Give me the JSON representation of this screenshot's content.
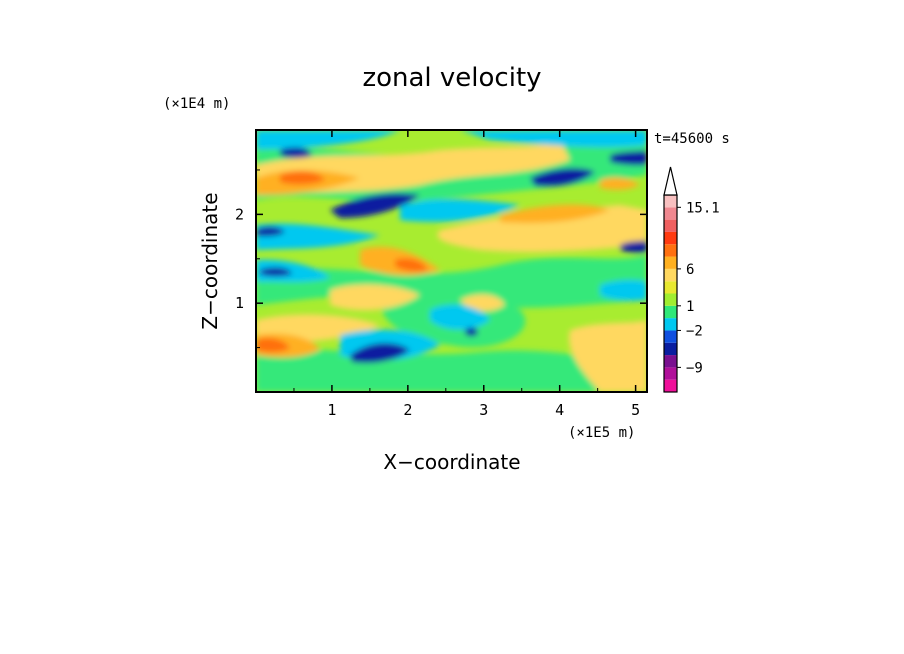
{
  "chart_data": {
    "type": "heatmap",
    "title": "zonal velocity",
    "time_label": "t=45600 s",
    "xlabel": "X−coordinate",
    "ylabel": "Z−coordinate",
    "x_unit_label": "(×1E5 m)",
    "y_unit_label": "(×1E4 m)",
    "xlim": [
      0,
      5.15
    ],
    "ylim": [
      0,
      2.95
    ],
    "x_ticks": [
      "1",
      "2",
      "3",
      "4",
      "5"
    ],
    "y_ticks": [
      "1",
      "2"
    ],
    "colorbar": {
      "labels": [
        "15.1",
        "6",
        "1",
        "−2",
        "−9"
      ],
      "extend": "max",
      "colors": [
        "#f0109a",
        "#b0109a",
        "#7a1090",
        "#0a1ea0",
        "#1050e0",
        "#00c8f0",
        "#30e878",
        "#a0ee30",
        "#e8e830",
        "#ffd860",
        "#ffb020",
        "#ff7010",
        "#ff3a10",
        "#f06060",
        "#f08890",
        "#f8c0c0"
      ]
    },
    "grid": false,
    "legend": "none"
  }
}
